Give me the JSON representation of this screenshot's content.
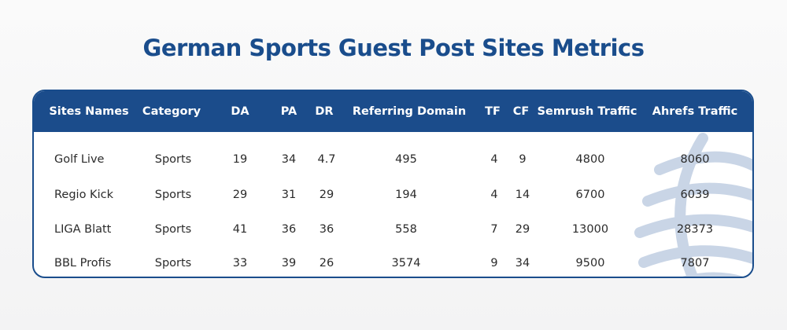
{
  "title": "German Sports Guest Post Sites Metrics",
  "table": {
    "columns": [
      "Sites Names",
      "Category",
      "DA",
      "PA",
      "DR",
      "Referring Domain",
      "TF",
      "CF",
      "Semrush Traffic",
      "Ahrefs Traffic"
    ],
    "rows": [
      [
        "Golf Live",
        "Sports",
        "19",
        "34",
        "4.7",
        "495",
        "4",
        "9",
        "4800",
        "8060"
      ],
      [
        "Regio Kick",
        "Sports",
        "29",
        "31",
        "29",
        "194",
        "4",
        "14",
        "6700",
        "6039"
      ],
      [
        "LIGA Blatt",
        "Sports",
        "41",
        "36",
        "36",
        "558",
        "7",
        "29",
        "13000",
        "28373"
      ],
      [
        "BBL Profis",
        "Sports",
        "33",
        "39",
        "26",
        "3574",
        "9",
        "34",
        "9500",
        "7807"
      ]
    ]
  },
  "colors": {
    "title": "#1a4d8c",
    "header_bg": "#1b4c8b",
    "header_text": "#ffffff",
    "border": "#1a4d8c",
    "watermark": "#c9d5e6"
  },
  "watermark_icon": "globe-icon"
}
